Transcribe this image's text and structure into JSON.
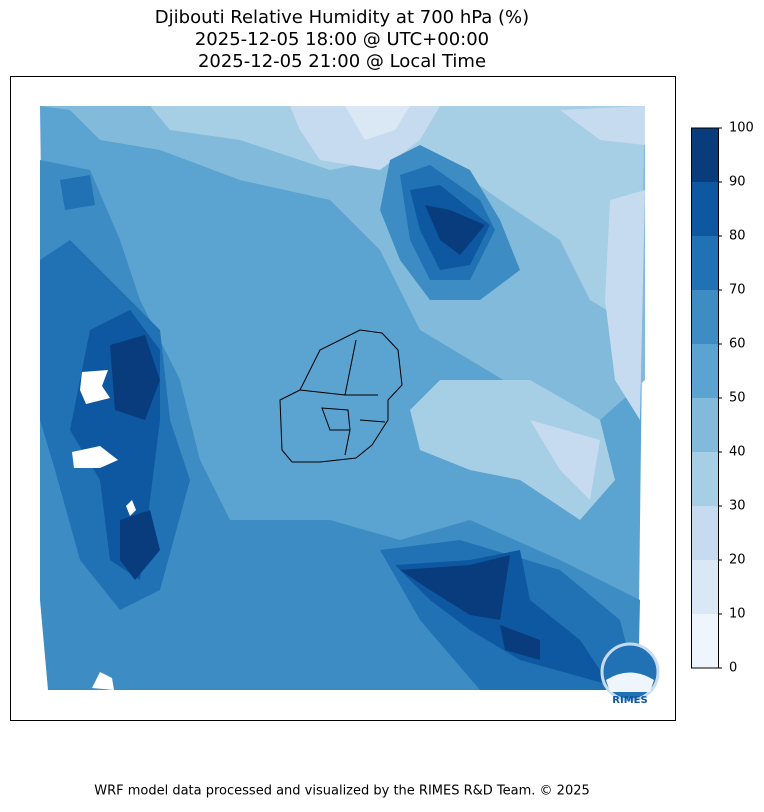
{
  "title": [
    "Djibouti Relative Humidity at 700 hPa (%)",
    "2025-12-05 18:00 @ UTC+00:00",
    "2025-12-05 21:00 @ Local Time"
  ],
  "colorbar": {
    "levels": [
      0,
      10,
      20,
      30,
      40,
      50,
      60,
      70,
      80,
      90,
      100
    ],
    "colors": [
      "#eef5fc",
      "#dae8f5",
      "#c6dbef",
      "#a6cee4",
      "#82badb",
      "#5ba3d0",
      "#3d8dc4",
      "#2171b5",
      "#0d58a1",
      "#083c7d"
    ],
    "ticks": [
      0,
      10,
      20,
      30,
      40,
      50,
      60,
      70,
      80,
      90,
      100
    ]
  },
  "logo_text": "RIMES",
  "footer": "WRF model data processed and visualized by the RIMES R&D Team. © 2025"
}
